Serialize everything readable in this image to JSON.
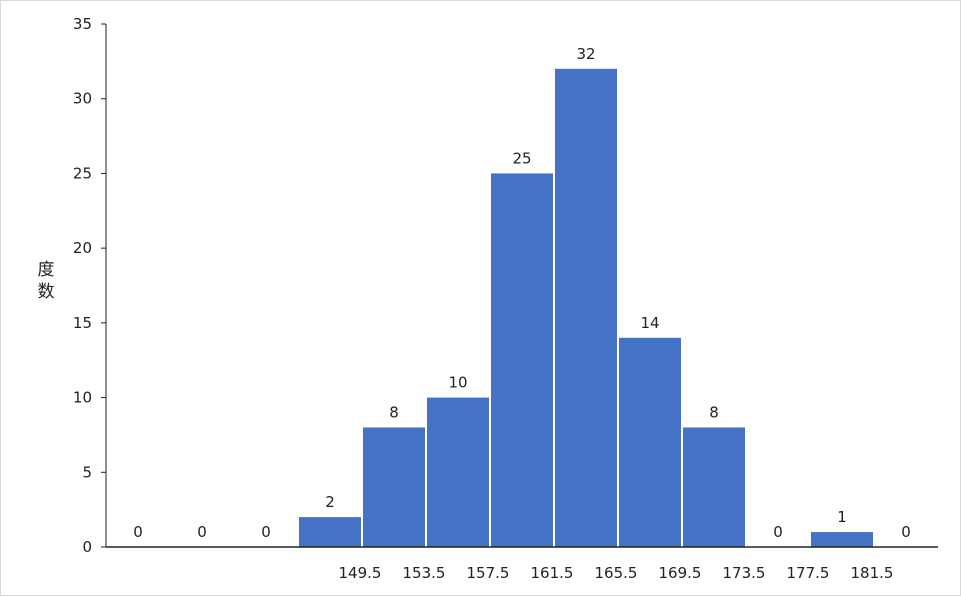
{
  "chart_data": {
    "type": "bar",
    "ylabel": "度数",
    "ylim": [
      0,
      35
    ],
    "yticks": [
      0,
      5,
      10,
      15,
      20,
      25,
      30,
      35
    ],
    "bin_values": [
      0,
      0,
      0,
      2,
      8,
      10,
      25,
      32,
      14,
      8,
      0,
      1,
      0
    ],
    "x_tick_labels": [
      "149.5",
      "153.5",
      "157.5",
      "161.5",
      "165.5",
      "169.5",
      "173.5",
      "177.5",
      "181.5"
    ],
    "bar_color": "#4472C4",
    "grid": false,
    "legend": "none"
  }
}
